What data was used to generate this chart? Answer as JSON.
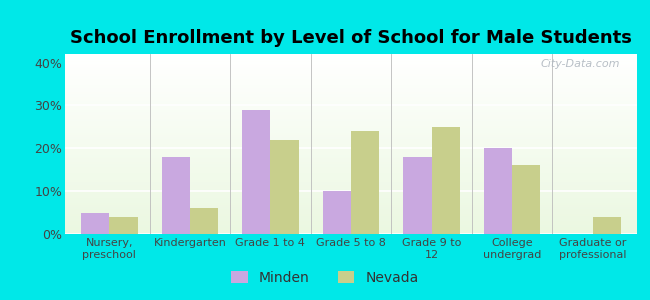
{
  "title": "School Enrollment by Level of School for Male Students",
  "title_fontsize": 13,
  "title_fontweight": "bold",
  "categories": [
    "Nursery,\npreschool",
    "Kindergarten",
    "Grade 1 to 4",
    "Grade 5 to 8",
    "Grade 9 to\n12",
    "College\nundergrad",
    "Graduate or\nprofessional"
  ],
  "minden_values": [
    5,
    18,
    29,
    10,
    18,
    20,
    0
  ],
  "nevada_values": [
    4,
    6,
    22,
    24,
    25,
    16,
    4
  ],
  "minden_color": "#c9a8e0",
  "nevada_color": "#c8cf8c",
  "background_color": "#00e8e8",
  "ylim": [
    0,
    42
  ],
  "yticks": [
    0,
    10,
    20,
    30,
    40
  ],
  "ytick_labels": [
    "0%",
    "10%",
    "20%",
    "30%",
    "40%"
  ],
  "bar_width": 0.35,
  "legend_labels": [
    "Minden",
    "Nevada"
  ],
  "watermark": "City-Data.com"
}
